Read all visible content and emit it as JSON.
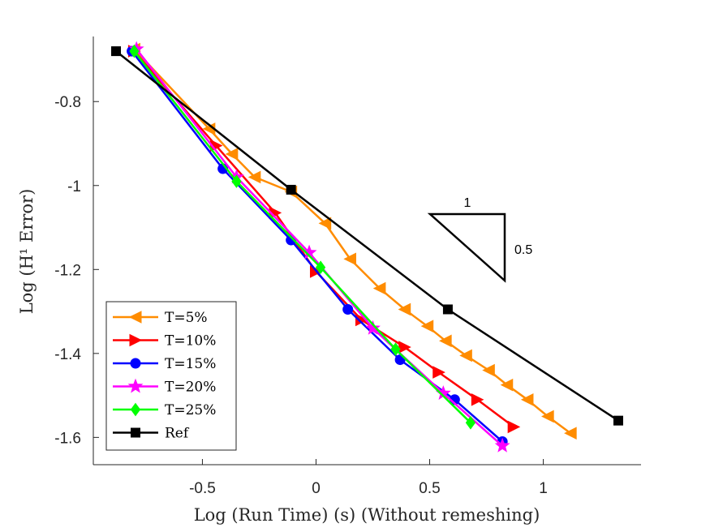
{
  "chart_data": {
    "type": "line",
    "xlabel": "Log (Run Time) (s) (Without remeshing)",
    "ylabel": "Log (H¹ Error)",
    "xlim": [
      -0.98,
      1.43
    ],
    "ylim": [
      -1.665,
      -0.645
    ],
    "xticks": [
      -0.5,
      0,
      0.5,
      1
    ],
    "xtick_labels": [
      "-0.5",
      "0",
      "0.5",
      "1"
    ],
    "yticks": [
      -1.6,
      -1.4,
      -1.2,
      -1,
      -0.8
    ],
    "ytick_labels": [
      "-1.6",
      "-1.4",
      "-1.2",
      "-1",
      "-0.8"
    ],
    "grid": false,
    "legend_position": "bottom-left",
    "series": [
      {
        "name": "T=5%",
        "color": "#FF8C00",
        "marker": "triangle-left",
        "x": [
          -0.8,
          -0.47,
          -0.37,
          -0.27,
          -0.11,
          0.04,
          0.15,
          0.28,
          0.39,
          0.49,
          0.57,
          0.66,
          0.76,
          0.84,
          0.93,
          1.02,
          1.12
        ],
        "y": [
          -0.675,
          -0.865,
          -0.925,
          -0.98,
          -1.015,
          -1.09,
          -1.175,
          -1.245,
          -1.295,
          -1.335,
          -1.37,
          -1.405,
          -1.44,
          -1.475,
          -1.51,
          -1.55,
          -1.59
        ]
      },
      {
        "name": "T=10%",
        "color": "#FF0000",
        "marker": "triangle-right",
        "x": [
          -0.8,
          -0.44,
          -0.18,
          0.0,
          0.2,
          0.39,
          0.54,
          0.71,
          0.87
        ],
        "y": [
          -0.68,
          -0.905,
          -1.065,
          -1.205,
          -1.32,
          -1.385,
          -1.445,
          -1.51,
          -1.575
        ]
      },
      {
        "name": "T=15%",
        "color": "#0000FF",
        "marker": "circle",
        "x": [
          -0.81,
          -0.41,
          -0.11,
          0.14,
          0.37,
          0.61,
          0.82
        ],
        "y": [
          -0.68,
          -0.96,
          -1.13,
          -1.295,
          -1.415,
          -1.51,
          -1.61
        ]
      },
      {
        "name": "T=20%",
        "color": "#FF00FF",
        "marker": "star",
        "x": [
          -0.79,
          -0.35,
          -0.03,
          0.25,
          0.56,
          0.82
        ],
        "y": [
          -0.675,
          -0.98,
          -1.16,
          -1.34,
          -1.495,
          -1.62
        ]
      },
      {
        "name": "T=25%",
        "color": "#00FF00",
        "marker": "diamond",
        "x": [
          -0.8,
          -0.35,
          0.02,
          0.35,
          0.68
        ],
        "y": [
          -0.68,
          -0.99,
          -1.195,
          -1.39,
          -1.565
        ]
      },
      {
        "name": "Ref",
        "color": "#000000",
        "marker": "square",
        "x": [
          -0.88,
          -0.11,
          0.58,
          1.33
        ],
        "y": [
          -0.68,
          -1.01,
          -1.295,
          -1.56
        ]
      }
    ],
    "annotations": {
      "slope_triangle": {
        "run_label": "1",
        "rise_label": "0.5"
      }
    }
  }
}
